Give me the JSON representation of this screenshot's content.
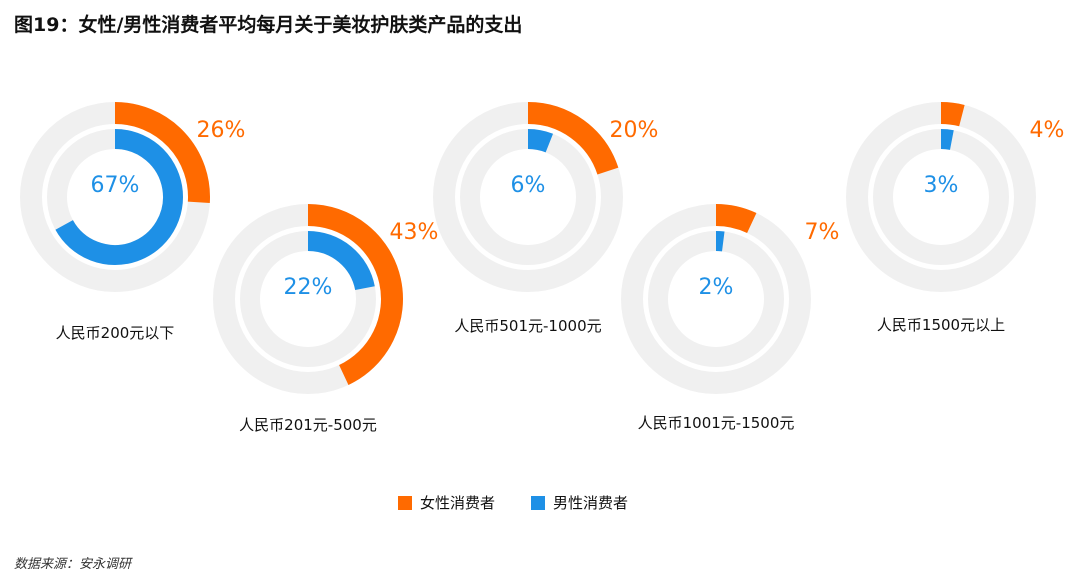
{
  "title": "图19：女性/男性消费者平均每月关于美妆护肤类产品的支出",
  "source": "数据来源：安永调研",
  "colors": {
    "female": "#FF6A00",
    "male": "#1E90E6",
    "track": "#F0F0F0"
  },
  "chart_data": {
    "type": "donut",
    "categories": [
      "人民币200元以下",
      "人民币201元-500元",
      "人民币501元-1000元",
      "人民币1001元-1500元",
      "人民币1500元以上"
    ],
    "series": [
      {
        "name": "女性消费者",
        "values": [
          26,
          43,
          20,
          7,
          4
        ]
      },
      {
        "name": "男性消费者",
        "values": [
          67,
          22,
          6,
          2,
          3
        ]
      }
    ],
    "value_labels_female": [
      "26%",
      "43%",
      "20%",
      "7%",
      "4%"
    ],
    "value_labels_male": [
      "67%",
      "22%",
      "6%",
      "2%",
      "3%"
    ],
    "legend": [
      "女性消费者",
      "男性消费者"
    ],
    "legend_position": "bottom-center"
  }
}
